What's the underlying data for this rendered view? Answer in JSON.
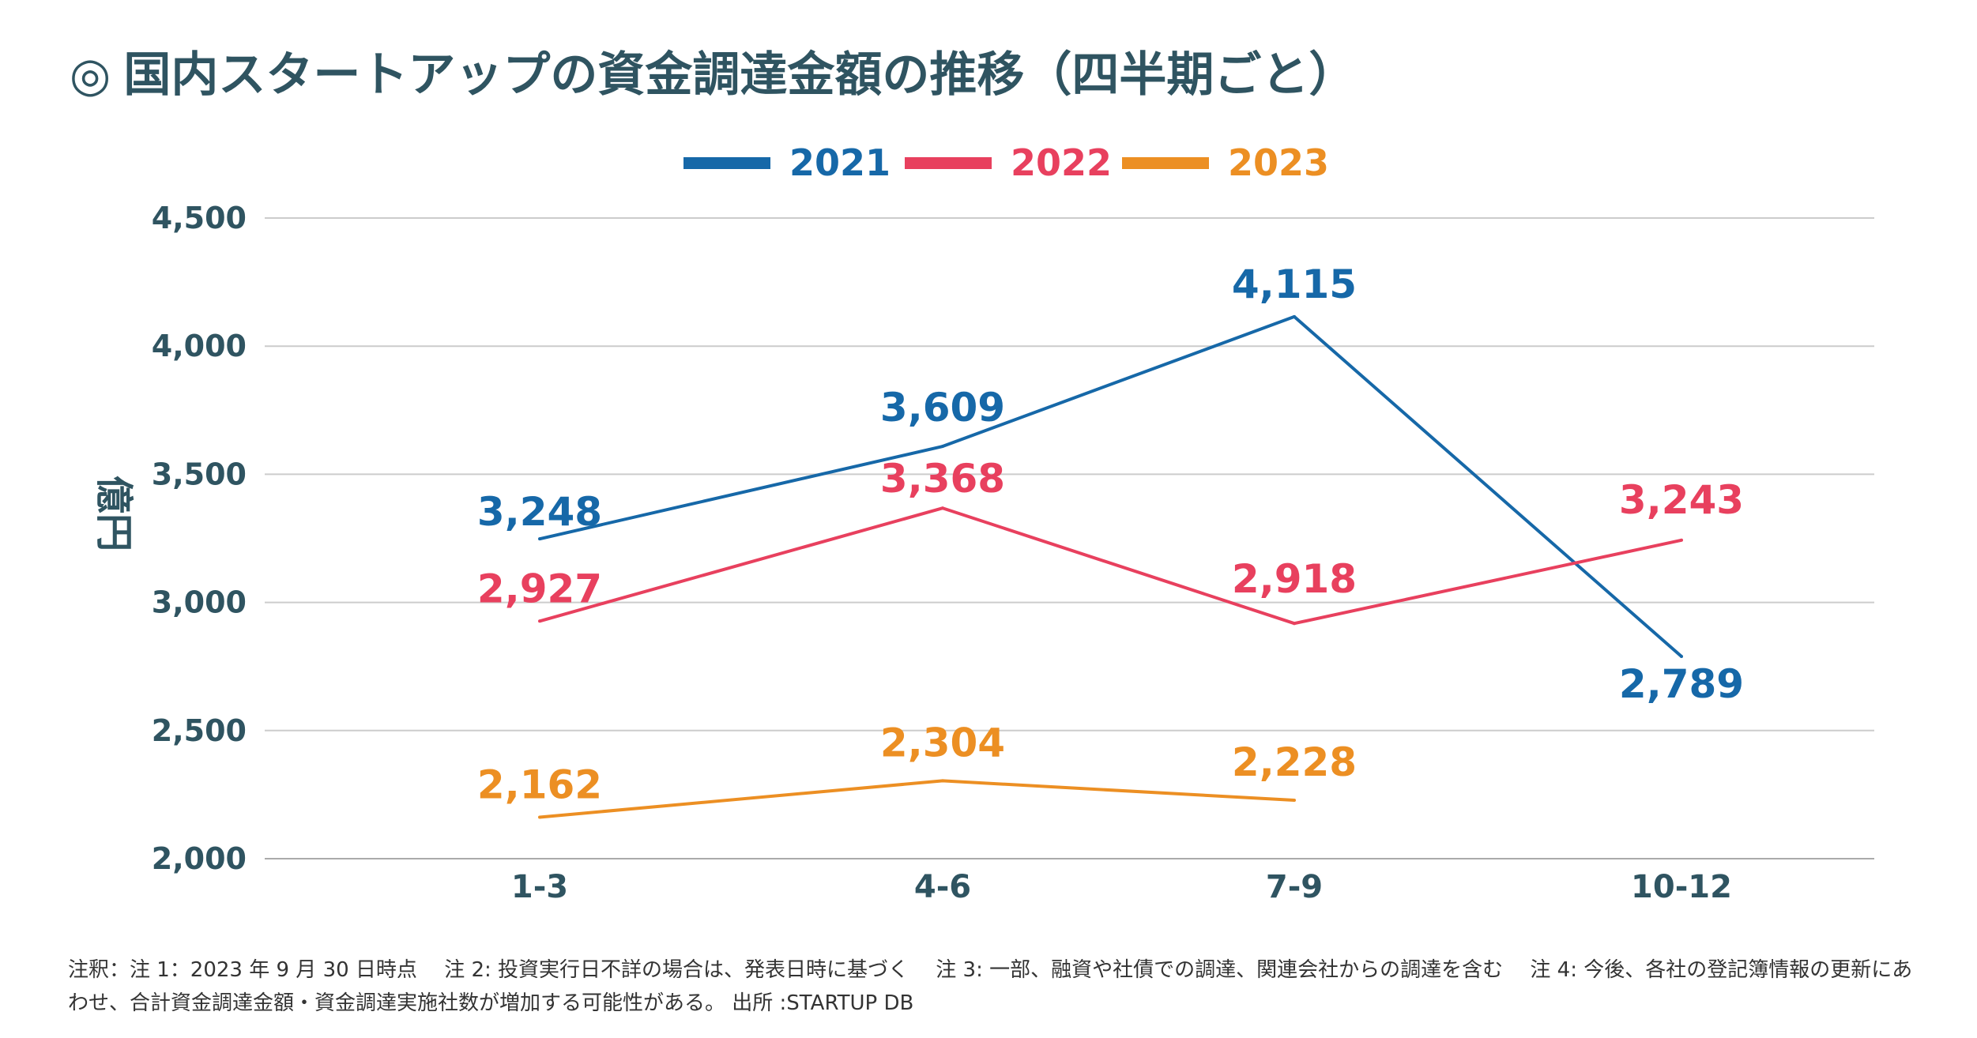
{
  "title": {
    "marker": "◎",
    "text": "国内スタートアップの資金調達金額の推移（四半期ごと）"
  },
  "colors": {
    "text": "#2f5461",
    "grid": "#cccccc",
    "s2021": "#1668a8",
    "s2022": "#e8405e",
    "s2023": "#ec8f23"
  },
  "chart_data": {
    "type": "line",
    "title": "国内スタートアップの資金調達金額の推移（四半期ごと）",
    "xlabel": "",
    "ylabel": "億円",
    "categories": [
      "1-3",
      "4-6",
      "7-9",
      "10-12"
    ],
    "ylim": [
      2000,
      4500
    ],
    "yticks": [
      2000,
      2500,
      3000,
      3500,
      4000,
      4500
    ],
    "ytick_labels": [
      "2,000",
      "2,500",
      "3,000",
      "3,500",
      "4,000",
      "4,500"
    ],
    "grid": true,
    "legend": "top-center",
    "series": [
      {
        "name": "2021",
        "color": "#1668a8",
        "values": [
          3248,
          3609,
          4115,
          2789
        ],
        "labels": [
          "3,248",
          "3,609",
          "4,115",
          "2,789"
        ]
      },
      {
        "name": "2022",
        "color": "#e8405e",
        "values": [
          2927,
          3368,
          2918,
          3243
        ],
        "labels": [
          "2,927",
          "3,368",
          "2,918",
          "3,243"
        ]
      },
      {
        "name": "2023",
        "color": "#ec8f23",
        "values": [
          2162,
          2304,
          2228,
          null
        ],
        "labels": [
          "2,162",
          "2,304",
          "2,228",
          null
        ]
      }
    ]
  },
  "notes": {
    "line1": "注釈：注 1：2023 年 9 月 30 日時点　 注 2: 投資実行日不詳の場合は、発表日時に基づく　 注 3: 一部、融資や社債での調達、関連会社からの調達を含む　 注 4: 今後、各社の登記簿情報の更新にあ",
    "line2": "わせ、合計資金調達金額・資金調達実施社数が増加する可能性がある。 出所 :STARTUP DB"
  }
}
